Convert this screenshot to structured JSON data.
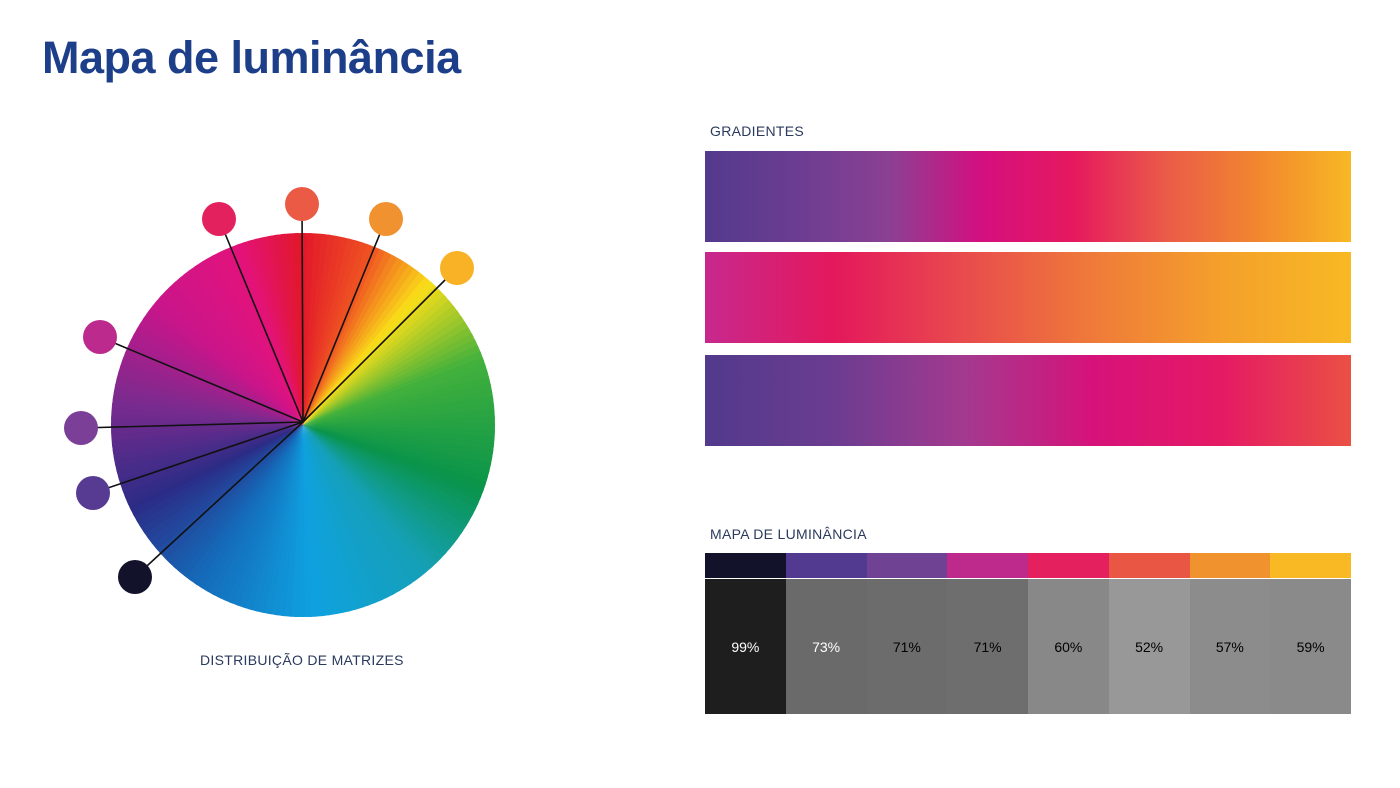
{
  "title": "Mapa de luminância",
  "wheel": {
    "caption": "DISTRIBUIÇÃO DE MATRIZES",
    "swatches": [
      {
        "name": "swatch-dark-navy",
        "color": "#13122b"
      },
      {
        "name": "swatch-deep-purple",
        "color": "#573a91"
      },
      {
        "name": "swatch-purple",
        "color": "#7c3f98"
      },
      {
        "name": "swatch-magenta",
        "color": "#bd2a8e"
      },
      {
        "name": "swatch-pink-red",
        "color": "#e4215f"
      },
      {
        "name": "swatch-coral",
        "color": "#ea5a44"
      },
      {
        "name": "swatch-orange",
        "color": "#f0922f"
      },
      {
        "name": "swatch-yellow-orange",
        "color": "#f9b225"
      }
    ]
  },
  "gradients": {
    "label": "GRADIENTES",
    "bars": [
      {
        "stops": [
          "#533a8d",
          "#6b3d91",
          "#8b4093",
          "#d40f7f",
          "#e6195e",
          "#ea5b48",
          "#f2872f",
          "#f8b824"
        ]
      },
      {
        "stops": [
          "#c7288e",
          "#e4185c",
          "#e84b4d",
          "#ef7a39",
          "#f4a02b",
          "#f8b924"
        ]
      },
      {
        "stops": [
          "#523a8c",
          "#6b3c90",
          "#a33a8f",
          "#d6127a",
          "#e51a64",
          "#ea5044"
        ]
      }
    ]
  },
  "luminance": {
    "label": "MAPA DE LUMINÂNCIA",
    "columns": [
      {
        "color": "#13122b",
        "gray": "#1e1e1e",
        "value": "99%",
        "text_color": "#ffffff"
      },
      {
        "color": "#533a91",
        "gray": "#6a6a6a",
        "value": "73%",
        "text_color": "#ffffff"
      },
      {
        "color": "#6f4294",
        "gray": "#6c6c6c",
        "value": "71%",
        "text_color": "#000000"
      },
      {
        "color": "#bd2a8c",
        "gray": "#6e6e6e",
        "value": "71%",
        "text_color": "#000000"
      },
      {
        "color": "#e4215e",
        "gray": "#888888",
        "value": "60%",
        "text_color": "#000000"
      },
      {
        "color": "#e95744",
        "gray": "#989898",
        "value": "52%",
        "text_color": "#000000"
      },
      {
        "color": "#f0932f",
        "gray": "#8c8c8c",
        "value": "57%",
        "text_color": "#000000"
      },
      {
        "color": "#f8b924",
        "gray": "#8a8a8a",
        "value": "59%",
        "text_color": "#000000"
      }
    ]
  }
}
